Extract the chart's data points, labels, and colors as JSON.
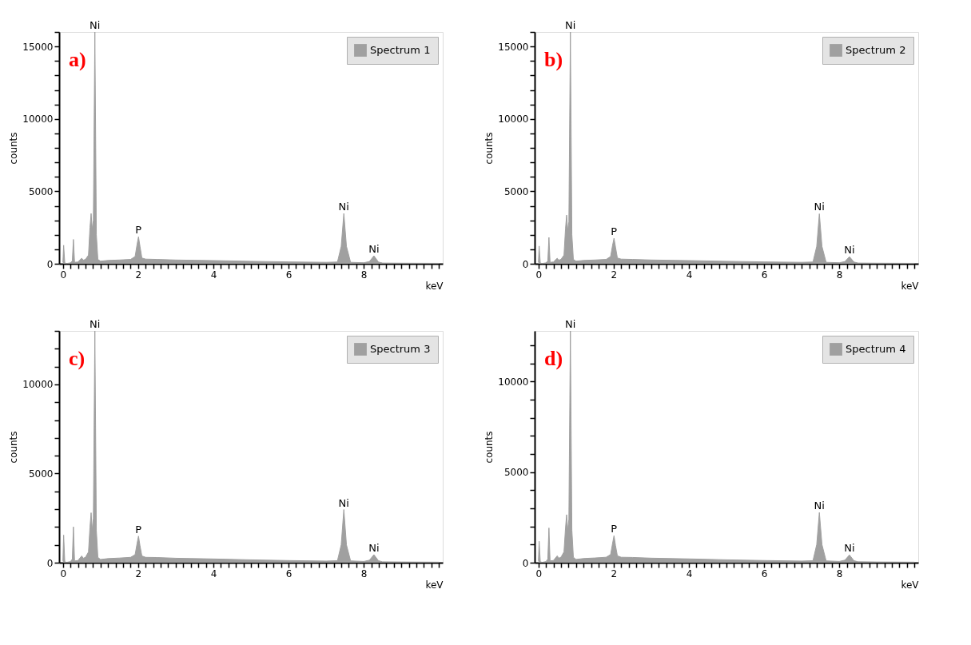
{
  "chart_data": [
    {
      "type": "area",
      "xlabel": "keV",
      "ylabel": "counts",
      "legend": "top right",
      "annotations": [
        "a)",
        {
          "text": "Ni",
          "x": 0.85,
          "y": 16000
        },
        {
          "text": "P",
          "x": 2.01,
          "y": 1860
        },
        {
          "text": "Ni",
          "x": 7.47,
          "y": 3470
        },
        {
          "text": "Ni",
          "x": 8.27,
          "y": 550
        }
      ],
      "xlim": [
        -0.1,
        10.1
      ],
      "ylim": [
        0,
        16000
      ],
      "xticks": [
        0,
        {
          "value": 0.2,
          "label": null
        },
        {
          "value": 0.4,
          "label": null
        },
        {
          "value": 0.6,
          "label": null
        },
        {
          "value": 0.8,
          "label": null
        },
        {
          "value": 1,
          "label": null
        },
        {
          "value": 1.2,
          "label": null
        },
        {
          "value": 1.4,
          "label": null
        },
        {
          "value": 1.6,
          "label": null
        },
        {
          "value": 1.8,
          "label": null
        },
        2,
        {
          "value": 2.2,
          "label": null
        },
        {
          "value": 2.4,
          "label": null
        },
        {
          "value": 2.6,
          "label": null
        },
        {
          "value": 2.8,
          "label": null
        },
        {
          "value": 3,
          "label": null
        },
        {
          "value": 3.2,
          "label": null
        },
        {
          "value": 3.4,
          "label": null
        },
        {
          "value": 3.6,
          "label": null
        },
        {
          "value": 3.8,
          "label": null
        },
        4,
        {
          "value": 4.2,
          "label": null
        },
        {
          "value": 4.4,
          "label": null
        },
        {
          "value": 4.6,
          "label": null
        },
        {
          "value": 4.8,
          "label": null
        },
        {
          "value": 5,
          "label": null
        },
        {
          "value": 5.2,
          "label": null
        },
        {
          "value": 5.4,
          "label": null
        },
        {
          "value": 5.6,
          "label": null
        },
        {
          "value": 5.8,
          "label": null
        },
        6,
        {
          "value": 6.2,
          "label": null
        },
        {
          "value": 6.4,
          "label": null
        },
        {
          "value": 6.6,
          "label": null
        },
        {
          "value": 6.8,
          "label": null
        },
        {
          "value": 7,
          "label": null
        },
        {
          "value": 7.2,
          "label": null
        },
        {
          "value": 7.4,
          "label": null
        },
        {
          "value": 7.6,
          "label": null
        },
        {
          "value": 7.8,
          "label": null
        },
        8,
        {
          "value": 8.2,
          "label": null
        },
        {
          "value": 8.4,
          "label": null
        },
        {
          "value": 8.6,
          "label": null
        },
        {
          "value": 8.8,
          "label": null
        },
        {
          "value": 9,
          "label": null
        },
        {
          "value": 9.2,
          "label": null
        },
        {
          "value": 9.4,
          "label": null
        },
        {
          "value": 9.6,
          "label": null
        },
        {
          "value": 9.8,
          "label": null
        },
        {
          "value": 10,
          "label": null
        }
      ],
      "yticks": [
        0,
        {
          "value": 1000,
          "label": null
        },
        {
          "value": 2000,
          "label": null
        },
        {
          "value": 3000,
          "label": null
        },
        {
          "value": 4000,
          "label": null
        },
        5000,
        {
          "value": 6000,
          "label": null
        },
        {
          "value": 7000,
          "label": null
        },
        {
          "value": 8000,
          "label": null
        },
        {
          "value": 9000,
          "label": null
        },
        10000,
        {
          "value": 11000,
          "label": null
        },
        {
          "value": 12000,
          "label": null
        },
        {
          "value": 13000,
          "label": null
        },
        {
          "value": 14000,
          "label": null
        },
        15000,
        {
          "value": 16000,
          "label": null
        }
      ],
      "x": [
        0,
        0.02,
        0.05,
        0.1,
        0.2,
        0.25,
        0.28,
        0.31,
        0.4,
        0.5,
        0.54,
        0.6,
        0.68,
        0.72,
        0.75,
        0.78,
        0.81,
        0.85,
        0.89,
        0.93,
        1.0,
        1.2,
        1.5,
        1.8,
        1.92,
        1.97,
        2.01,
        2.05,
        2.1,
        2.2,
        2.5,
        3,
        4,
        5,
        6,
        7,
        7.3,
        7.4,
        7.47,
        7.54,
        7.65,
        8.0,
        8.15,
        8.27,
        8.39,
        8.5,
        9,
        10
      ],
      "series": [
        {
          "name": "Spectrum 1",
          "color": "#a0a0a0",
          "values": [
            100,
            1280,
            50,
            20,
            60,
            200,
            1680,
            100,
            120,
            380,
            250,
            300,
            600,
            2500,
            3470,
            2370,
            3000,
            16000,
            2000,
            300,
            180,
            230,
            260,
            300,
            500,
            1300,
            1860,
            1200,
            400,
            320,
            300,
            260,
            220,
            170,
            130,
            100,
            120,
            1200,
            3470,
            1200,
            100,
            70,
            150,
            550,
            120,
            50,
            40,
            30
          ]
        }
      ]
    },
    {
      "type": "area",
      "xlabel": "keV",
      "ylabel": "counts",
      "legend": "top right",
      "annotations": [
        "b)",
        {
          "text": "Ni",
          "x": 0.85,
          "y": 16000
        },
        {
          "text": "P",
          "x": 2.01,
          "y": 1760
        },
        {
          "text": "Ni",
          "x": 7.47,
          "y": 3450
        },
        {
          "text": "Ni",
          "x": 8.27,
          "y": 490
        }
      ],
      "xlim": [
        -0.1,
        10.1
      ],
      "ylim": [
        0,
        16000
      ],
      "xticks": [
        0,
        {
          "value": 0.2,
          "label": null
        },
        {
          "value": 0.4,
          "label": null
        },
        {
          "value": 0.6,
          "label": null
        },
        {
          "value": 0.8,
          "label": null
        },
        {
          "value": 1,
          "label": null
        },
        {
          "value": 1.2,
          "label": null
        },
        {
          "value": 1.4,
          "label": null
        },
        {
          "value": 1.6,
          "label": null
        },
        {
          "value": 1.8,
          "label": null
        },
        2,
        {
          "value": 2.2,
          "label": null
        },
        {
          "value": 2.4,
          "label": null
        },
        {
          "value": 2.6,
          "label": null
        },
        {
          "value": 2.8,
          "label": null
        },
        {
          "value": 3,
          "label": null
        },
        {
          "value": 3.2,
          "label": null
        },
        {
          "value": 3.4,
          "label": null
        },
        {
          "value": 3.6,
          "label": null
        },
        {
          "value": 3.8,
          "label": null
        },
        4,
        {
          "value": 4.2,
          "label": null
        },
        {
          "value": 4.4,
          "label": null
        },
        {
          "value": 4.6,
          "label": null
        },
        {
          "value": 4.8,
          "label": null
        },
        {
          "value": 5,
          "label": null
        },
        {
          "value": 5.2,
          "label": null
        },
        {
          "value": 5.4,
          "label": null
        },
        {
          "value": 5.6,
          "label": null
        },
        {
          "value": 5.8,
          "label": null
        },
        6,
        {
          "value": 6.2,
          "label": null
        },
        {
          "value": 6.4,
          "label": null
        },
        {
          "value": 6.6,
          "label": null
        },
        {
          "value": 6.8,
          "label": null
        },
        {
          "value": 7,
          "label": null
        },
        {
          "value": 7.2,
          "label": null
        },
        {
          "value": 7.4,
          "label": null
        },
        {
          "value": 7.6,
          "label": null
        },
        {
          "value": 7.8,
          "label": null
        },
        8,
        {
          "value": 8.2,
          "label": null
        },
        {
          "value": 8.4,
          "label": null
        },
        {
          "value": 8.6,
          "label": null
        },
        {
          "value": 8.8,
          "label": null
        },
        {
          "value": 9,
          "label": null
        },
        {
          "value": 9.2,
          "label": null
        },
        {
          "value": 9.4,
          "label": null
        },
        {
          "value": 9.6,
          "label": null
        },
        {
          "value": 9.8,
          "label": null
        },
        {
          "value": 10,
          "label": null
        }
      ],
      "yticks": [
        0,
        {
          "value": 1000,
          "label": null
        },
        {
          "value": 2000,
          "label": null
        },
        {
          "value": 3000,
          "label": null
        },
        {
          "value": 4000,
          "label": null
        },
        5000,
        {
          "value": 6000,
          "label": null
        },
        {
          "value": 7000,
          "label": null
        },
        {
          "value": 8000,
          "label": null
        },
        {
          "value": 9000,
          "label": null
        },
        10000,
        {
          "value": 11000,
          "label": null
        },
        {
          "value": 12000,
          "label": null
        },
        {
          "value": 13000,
          "label": null
        },
        {
          "value": 14000,
          "label": null
        },
        15000,
        {
          "value": 16000,
          "label": null
        }
      ],
      "x": [
        0,
        0.02,
        0.05,
        0.1,
        0.2,
        0.25,
        0.28,
        0.31,
        0.4,
        0.5,
        0.54,
        0.6,
        0.68,
        0.72,
        0.75,
        0.78,
        0.81,
        0.85,
        0.89,
        0.93,
        1.0,
        1.2,
        1.5,
        1.8,
        1.92,
        1.97,
        2.01,
        2.05,
        2.1,
        2.2,
        2.5,
        3,
        4,
        5,
        6,
        7,
        7.3,
        7.4,
        7.47,
        7.54,
        7.65,
        8.0,
        8.15,
        8.27,
        8.39,
        8.5,
        9,
        10
      ],
      "series": [
        {
          "name": "Spectrum 2",
          "color": "#a0a0a0",
          "values": [
            100,
            1220,
            50,
            20,
            60,
            200,
            1820,
            100,
            120,
            380,
            250,
            300,
            600,
            2400,
            3360,
            2270,
            2900,
            16000,
            2000,
            300,
            180,
            230,
            260,
            300,
            500,
            1250,
            1760,
            1150,
            400,
            320,
            300,
            260,
            220,
            170,
            130,
            100,
            120,
            1200,
            3450,
            1200,
            100,
            70,
            150,
            490,
            120,
            50,
            40,
            30
          ]
        }
      ]
    },
    {
      "type": "area",
      "xlabel": "keV",
      "ylabel": "counts",
      "legend": "top right",
      "annotations": [
        "c)",
        {
          "text": "Ni",
          "x": 0.85,
          "y": 13000
        },
        {
          "text": "P",
          "x": 2.01,
          "y": 1490
        },
        {
          "text": "Ni",
          "x": 7.47,
          "y": 2980
        },
        {
          "text": "Ni",
          "x": 8.27,
          "y": 450
        }
      ],
      "xlim": [
        -0.1,
        10.1
      ],
      "ylim": [
        0,
        13000
      ],
      "xticks": [
        0,
        {
          "value": 0.2,
          "label": null
        },
        {
          "value": 0.4,
          "label": null
        },
        {
          "value": 0.6,
          "label": null
        },
        {
          "value": 0.8,
          "label": null
        },
        {
          "value": 1,
          "label": null
        },
        {
          "value": 1.2,
          "label": null
        },
        {
          "value": 1.4,
          "label": null
        },
        {
          "value": 1.6,
          "label": null
        },
        {
          "value": 1.8,
          "label": null
        },
        2,
        {
          "value": 2.2,
          "label": null
        },
        {
          "value": 2.4,
          "label": null
        },
        {
          "value": 2.6,
          "label": null
        },
        {
          "value": 2.8,
          "label": null
        },
        {
          "value": 3,
          "label": null
        },
        {
          "value": 3.2,
          "label": null
        },
        {
          "value": 3.4,
          "label": null
        },
        {
          "value": 3.6,
          "label": null
        },
        {
          "value": 3.8,
          "label": null
        },
        4,
        {
          "value": 4.2,
          "label": null
        },
        {
          "value": 4.4,
          "label": null
        },
        {
          "value": 4.6,
          "label": null
        },
        {
          "value": 4.8,
          "label": null
        },
        {
          "value": 5,
          "label": null
        },
        {
          "value": 5.2,
          "label": null
        },
        {
          "value": 5.4,
          "label": null
        },
        {
          "value": 5.6,
          "label": null
        },
        {
          "value": 5.8,
          "label": null
        },
        6,
        {
          "value": 6.2,
          "label": null
        },
        {
          "value": 6.4,
          "label": null
        },
        {
          "value": 6.6,
          "label": null
        },
        {
          "value": 6.8,
          "label": null
        },
        {
          "value": 7,
          "label": null
        },
        {
          "value": 7.2,
          "label": null
        },
        {
          "value": 7.4,
          "label": null
        },
        {
          "value": 7.6,
          "label": null
        },
        {
          "value": 7.8,
          "label": null
        },
        8,
        {
          "value": 8.2,
          "label": null
        },
        {
          "value": 8.4,
          "label": null
        },
        {
          "value": 8.6,
          "label": null
        },
        {
          "value": 8.8,
          "label": null
        },
        {
          "value": 9,
          "label": null
        },
        {
          "value": 9.2,
          "label": null
        },
        {
          "value": 9.4,
          "label": null
        },
        {
          "value": 9.6,
          "label": null
        },
        {
          "value": 9.8,
          "label": null
        },
        {
          "value": 10,
          "label": null
        }
      ],
      "yticks": [
        0,
        {
          "value": 1000,
          "label": null
        },
        {
          "value": 2000,
          "label": null
        },
        {
          "value": 3000,
          "label": null
        },
        {
          "value": 4000,
          "label": null
        },
        5000,
        {
          "value": 6000,
          "label": null
        },
        {
          "value": 7000,
          "label": null
        },
        {
          "value": 8000,
          "label": null
        },
        {
          "value": 9000,
          "label": null
        },
        10000,
        {
          "value": 11000,
          "label": null
        },
        {
          "value": 12000,
          "label": null
        },
        {
          "value": 13000,
          "label": null
        }
      ],
      "x": [
        0,
        0.02,
        0.05,
        0.1,
        0.2,
        0.25,
        0.28,
        0.31,
        0.4,
        0.5,
        0.54,
        0.6,
        0.68,
        0.72,
        0.75,
        0.78,
        0.81,
        0.85,
        0.89,
        0.93,
        1.0,
        1.2,
        1.5,
        1.8,
        1.92,
        1.97,
        2.01,
        2.05,
        2.1,
        2.2,
        2.5,
        3,
        4,
        5,
        6,
        7,
        7.3,
        7.4,
        7.47,
        7.54,
        7.65,
        8.0,
        8.15,
        8.27,
        8.39,
        8.5,
        9,
        10
      ],
      "series": [
        {
          "name": "Spectrum 3",
          "color": "#a0a0a0",
          "values": [
            100,
            1550,
            50,
            20,
            60,
            200,
            2010,
            100,
            120,
            380,
            250,
            300,
            600,
            2000,
            2800,
            1820,
            2500,
            13000,
            1800,
            300,
            180,
            230,
            260,
            300,
            450,
            1050,
            1490,
            950,
            380,
            300,
            290,
            250,
            210,
            160,
            120,
            90,
            110,
            1000,
            2980,
            1000,
            100,
            70,
            140,
            450,
            110,
            50,
            40,
            30
          ]
        }
      ]
    },
    {
      "type": "area",
      "xlabel": "keV",
      "ylabel": "counts",
      "legend": "top right",
      "annotations": [
        "d)",
        {
          "text": "Ni",
          "x": 0.85,
          "y": 12800
        },
        {
          "text": "P",
          "x": 2.01,
          "y": 1490
        },
        {
          "text": "Ni",
          "x": 7.47,
          "y": 2770
        },
        {
          "text": "Ni",
          "x": 8.27,
          "y": 430
        }
      ],
      "xlim": [
        -0.1,
        10.1
      ],
      "ylim": [
        0,
        12800
      ],
      "xticks": [
        0,
        {
          "value": 0.2,
          "label": null
        },
        {
          "value": 0.4,
          "label": null
        },
        {
          "value": 0.6,
          "label": null
        },
        {
          "value": 0.8,
          "label": null
        },
        {
          "value": 1,
          "label": null
        },
        {
          "value": 1.2,
          "label": null
        },
        {
          "value": 1.4,
          "label": null
        },
        {
          "value": 1.6,
          "label": null
        },
        {
          "value": 1.8,
          "label": null
        },
        2,
        {
          "value": 2.2,
          "label": null
        },
        {
          "value": 2.4,
          "label": null
        },
        {
          "value": 2.6,
          "label": null
        },
        {
          "value": 2.8,
          "label": null
        },
        {
          "value": 3,
          "label": null
        },
        {
          "value": 3.2,
          "label": null
        },
        {
          "value": 3.4,
          "label": null
        },
        {
          "value": 3.6,
          "label": null
        },
        {
          "value": 3.8,
          "label": null
        },
        4,
        {
          "value": 4.2,
          "label": null
        },
        {
          "value": 4.4,
          "label": null
        },
        {
          "value": 4.6,
          "label": null
        },
        {
          "value": 4.8,
          "label": null
        },
        {
          "value": 5,
          "label": null
        },
        {
          "value": 5.2,
          "label": null
        },
        {
          "value": 5.4,
          "label": null
        },
        {
          "value": 5.6,
          "label": null
        },
        {
          "value": 5.8,
          "label": null
        },
        6,
        {
          "value": 6.2,
          "label": null
        },
        {
          "value": 6.4,
          "label": null
        },
        {
          "value": 6.6,
          "label": null
        },
        {
          "value": 6.8,
          "label": null
        },
        {
          "value": 7,
          "label": null
        },
        {
          "value": 7.2,
          "label": null
        },
        {
          "value": 7.4,
          "label": null
        },
        {
          "value": 7.6,
          "label": null
        },
        {
          "value": 7.8,
          "label": null
        },
        8,
        {
          "value": 8.2,
          "label": null
        },
        {
          "value": 8.4,
          "label": null
        },
        {
          "value": 8.6,
          "label": null
        },
        {
          "value": 8.8,
          "label": null
        },
        {
          "value": 9,
          "label": null
        },
        {
          "value": 9.2,
          "label": null
        },
        {
          "value": 9.4,
          "label": null
        },
        {
          "value": 9.6,
          "label": null
        },
        {
          "value": 9.8,
          "label": null
        },
        {
          "value": 10,
          "label": null
        }
      ],
      "yticks": [
        0,
        {
          "value": 1000,
          "label": null
        },
        {
          "value": 2000,
          "label": null
        },
        {
          "value": 3000,
          "label": null
        },
        {
          "value": 4000,
          "label": null
        },
        5000,
        {
          "value": 6000,
          "label": null
        },
        {
          "value": 7000,
          "label": null
        },
        {
          "value": 8000,
          "label": null
        },
        {
          "value": 9000,
          "label": null
        },
        10000,
        {
          "value": 11000,
          "label": null
        },
        {
          "value": 12000,
          "label": null
        }
      ],
      "x": [
        0,
        0.02,
        0.05,
        0.1,
        0.2,
        0.25,
        0.28,
        0.31,
        0.4,
        0.5,
        0.54,
        0.6,
        0.68,
        0.72,
        0.75,
        0.78,
        0.81,
        0.85,
        0.89,
        0.93,
        1.0,
        1.2,
        1.5,
        1.8,
        1.92,
        1.97,
        2.01,
        2.05,
        2.1,
        2.2,
        2.5,
        3,
        4,
        5,
        6,
        7,
        7.3,
        7.4,
        7.47,
        7.54,
        7.65,
        8.0,
        8.15,
        8.27,
        8.39,
        8.5,
        9,
        10
      ],
      "series": [
        {
          "name": "Spectrum 4",
          "color": "#a0a0a0",
          "values": [
            100,
            1180,
            50,
            20,
            60,
            200,
            1920,
            100,
            120,
            380,
            250,
            300,
            600,
            1900,
            2650,
            1780,
            2400,
            12800,
            1800,
            300,
            180,
            230,
            260,
            300,
            450,
            1050,
            1490,
            950,
            380,
            300,
            290,
            250,
            210,
            160,
            120,
            90,
            110,
            1000,
            2770,
            1000,
            100,
            70,
            140,
            430,
            110,
            50,
            40,
            30
          ]
        }
      ]
    }
  ]
}
